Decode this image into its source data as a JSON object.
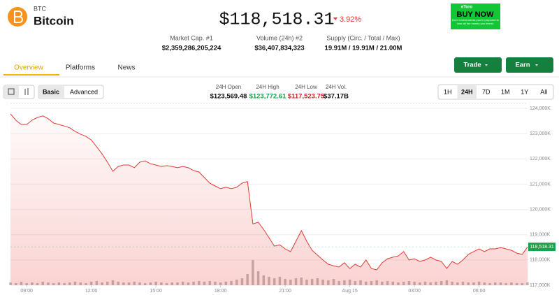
{
  "header": {
    "symbol": "BTC",
    "name": "Bitcoin",
    "price": "$118,518.31",
    "change": "3.92%",
    "stats": [
      {
        "label": "Market Cap. #1",
        "value": "$2,359,286,205,224"
      },
      {
        "label": "Volume (24h) #2",
        "value": "$36,407,834,323"
      },
      {
        "label": "Supply (Circ. / Total / Max)",
        "value": "19.91M / 19.91M / 21.00M"
      }
    ]
  },
  "ad": {
    "brand": "eToro",
    "cta": "BUY NOW",
    "disclaimer": "Don't invest unless you're prepared to lose all the money you invest."
  },
  "tabs": [
    "Overview",
    "Platforms",
    "News"
  ],
  "actions": [
    "Trade",
    "Earn"
  ],
  "modes": [
    "Basic",
    "Advanced"
  ],
  "day_stats": [
    {
      "label": "24H Open",
      "value": "$123,569.48"
    },
    {
      "label": "24H High",
      "value": "$123,772.61"
    },
    {
      "label": "24H Low",
      "value": "$117,523.75"
    },
    {
      "label": "24H Vol.",
      "value": "$37.17B"
    }
  ],
  "ranges": [
    "1H",
    "24H",
    "7D",
    "1M",
    "1Y",
    "All"
  ],
  "chart_data": {
    "type": "line",
    "categories": [
      null,
      null,
      null,
      "09:00",
      null,
      null,
      null,
      null,
      null,
      null,
      null,
      null,
      null,
      null,
      null,
      "12:00",
      null,
      null,
      null,
      null,
      null,
      null,
      null,
      null,
      null,
      null,
      null,
      "15:00",
      null,
      null,
      null,
      null,
      null,
      null,
      null,
      null,
      null,
      null,
      null,
      "18:00",
      null,
      null,
      null,
      null,
      null,
      null,
      null,
      null,
      null,
      null,
      null,
      "21:00",
      null,
      null,
      null,
      null,
      null,
      null,
      null,
      null,
      null,
      null,
      null,
      "Aug 15",
      null,
      null,
      null,
      null,
      null,
      null,
      null,
      null,
      null,
      null,
      null,
      "03:00",
      null,
      null,
      null,
      null,
      null,
      null,
      null,
      null,
      null,
      null,
      null,
      "06:00",
      null,
      null,
      null,
      null,
      null,
      null,
      null,
      null,
      null
    ],
    "series": [
      {
        "color": "#e53935",
        "values": [
          123780,
          123530,
          123360,
          123360,
          123530,
          123640,
          123700,
          123590,
          123420,
          123360,
          123300,
          123230,
          123090,
          122980,
          122890,
          122750,
          122480,
          122200,
          121870,
          121510,
          121700,
          121760,
          121760,
          121650,
          121870,
          121920,
          121810,
          121760,
          121700,
          121730,
          121700,
          121650,
          121700,
          121650,
          121540,
          121480,
          121260,
          121040,
          120930,
          120820,
          120880,
          120820,
          120880,
          121040,
          121100,
          119430,
          119490,
          119210,
          118880,
          118550,
          118600,
          118440,
          118330,
          118740,
          119160,
          118740,
          118380,
          118190,
          118000,
          117830,
          117770,
          117720,
          117890,
          117660,
          117830,
          117720,
          118000,
          117660,
          117610,
          117890,
          118050,
          118110,
          118160,
          118330,
          118000,
          118050,
          117940,
          118000,
          118110,
          118000,
          117940,
          117660,
          117940,
          117830,
          118000,
          118220,
          118330,
          118440,
          118330,
          118440,
          118440,
          118490,
          118440,
          118380,
          118270,
          118220,
          118518.31
        ]
      }
    ],
    "volume": {
      "color": "#bdbdbd",
      "values": [
        4,
        3,
        5,
        3,
        4,
        3,
        5,
        4,
        3,
        4,
        3,
        4,
        5,
        4,
        3,
        5,
        6,
        4,
        5,
        7,
        5,
        4,
        4,
        5,
        4,
        3,
        4,
        5,
        4,
        3,
        4,
        4,
        5,
        4,
        5,
        6,
        5,
        6,
        5,
        4,
        5,
        6,
        8,
        10,
        16,
        36,
        20,
        14,
        12,
        10,
        12,
        9,
        8,
        10,
        11,
        8,
        9,
        10,
        8,
        7,
        9,
        6,
        7,
        8,
        6,
        7,
        5,
        6,
        7,
        5,
        6,
        5,
        4,
        5,
        6,
        5,
        4,
        5,
        4,
        5,
        6,
        7,
        5,
        4,
        5,
        4,
        4,
        5,
        4,
        3,
        4,
        4,
        3,
        4,
        3,
        3,
        4
      ]
    },
    "ylim": [
      117000,
      124200
    ],
    "yticks": [
      {
        "value": 117000,
        "label": "117,000K"
      },
      {
        "value": 118000,
        "label": "118,000K"
      },
      {
        "value": 119000,
        "label": "119,000K"
      },
      {
        "value": 120000,
        "label": "120,000K"
      },
      {
        "value": 121000,
        "label": "121,000K"
      },
      {
        "value": 122000,
        "label": "122,000K"
      },
      {
        "value": 123000,
        "label": "123,000K"
      },
      {
        "value": 124000,
        "label": "124,000K"
      }
    ],
    "price_tag": {
      "value": 118518.31,
      "label": "118,518.31",
      "color": "#16a34a"
    },
    "grid": true
  }
}
